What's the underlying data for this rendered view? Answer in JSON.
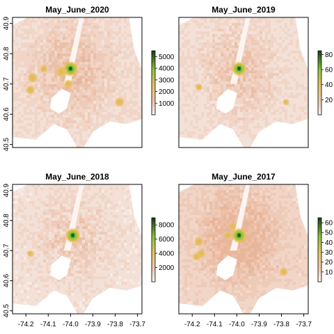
{
  "chart_data": [
    {
      "type": "heatmap",
      "title": "May_June_2020",
      "y_ticks": [
        "40.9",
        "40.8",
        "40.7",
        "40.6",
        "40.5"
      ],
      "x_ticks": [],
      "legend": {
        "max": 5500,
        "ticks": [
          1000,
          2000,
          3000,
          4000,
          5000
        ],
        "tick_labels": [
          "1000",
          "2000",
          "3000",
          "4000",
          "5000"
        ],
        "placement": "right"
      },
      "hotspots": [
        {
          "lon": -74.0,
          "lat": 40.75,
          "value": 5200
        },
        {
          "lon": -74.04,
          "lat": 40.74,
          "value": 3200
        },
        {
          "lon": -74.17,
          "lat": 40.72,
          "value": 2600
        },
        {
          "lon": -74.18,
          "lat": 40.68,
          "value": 2200
        },
        {
          "lon": -74.01,
          "lat": 40.7,
          "value": 2000
        },
        {
          "lon": -73.78,
          "lat": 40.64,
          "value": 2400
        },
        {
          "lon": -74.12,
          "lat": 40.75,
          "value": 1400
        }
      ]
    },
    {
      "type": "heatmap",
      "title": "May_June_2019",
      "y_ticks": [],
      "x_ticks": [],
      "legend": {
        "max": 8500,
        "ticks": [
          2000,
          4000,
          6000,
          8000
        ],
        "tick_labels": [
          "20",
          "40",
          "60",
          "80"
        ],
        "placement": "right"
      },
      "hotspots": [
        {
          "lon": -73.99,
          "lat": 40.75,
          "value": 7500
        },
        {
          "lon": -74.17,
          "lat": 40.69,
          "value": 1800
        },
        {
          "lon": -73.78,
          "lat": 40.64,
          "value": 1300
        }
      ]
    },
    {
      "type": "heatmap",
      "title": "May_June_2018",
      "y_ticks": [
        "40.9",
        "40.8",
        "40.7",
        "40.6",
        "40.5"
      ],
      "x_ticks": [
        "-74.2",
        "-74.1",
        "-74.0",
        "-73.9",
        "-73.8",
        "-73.7"
      ],
      "legend": {
        "max": 9000,
        "ticks": [
          2000,
          4000,
          6000,
          8000
        ],
        "tick_labels": [
          "2000",
          "4000",
          "6000",
          "8000"
        ],
        "placement": "right"
      },
      "hotspots": [
        {
          "lon": -73.99,
          "lat": 40.75,
          "value": 8200
        },
        {
          "lon": -74.18,
          "lat": 40.69,
          "value": 1500
        }
      ]
    },
    {
      "type": "heatmap",
      "title": "May_June_2017",
      "y_ticks": [],
      "x_ticks": [
        "-74.2",
        "-74.1",
        "-74.0",
        "-73.9",
        "-73.8",
        "-73.7"
      ],
      "legend": {
        "max": 6500,
        "ticks": [
          1000,
          2000,
          3000,
          4000,
          5000,
          6000
        ],
        "tick_labels": [
          "10",
          "20",
          "30",
          "40",
          "50",
          "60"
        ],
        "placement": "right"
      },
      "hotspots": [
        {
          "lon": -73.99,
          "lat": 40.75,
          "value": 6000
        },
        {
          "lon": -74.17,
          "lat": 40.73,
          "value": 2500
        },
        {
          "lon": -74.16,
          "lat": 40.69,
          "value": 2300
        },
        {
          "lon": -74.04,
          "lat": 40.75,
          "value": 2000
        },
        {
          "lon": -74.18,
          "lat": 40.68,
          "value": 2100
        },
        {
          "lon": -73.79,
          "lat": 40.63,
          "value": 2200
        },
        {
          "lon": -74.02,
          "lat": 40.78,
          "value": 1600
        }
      ]
    }
  ]
}
